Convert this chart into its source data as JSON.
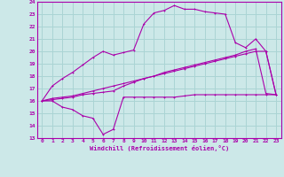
{
  "xlabel": "Windchill (Refroidissement éolien,°C)",
  "background_color": "#cce8e8",
  "grid_color": "#aad4d4",
  "line_color": "#aa00aa",
  "xlim": [
    -0.5,
    23.5
  ],
  "ylim": [
    13,
    24
  ],
  "xticks": [
    0,
    1,
    2,
    3,
    4,
    5,
    6,
    7,
    8,
    9,
    10,
    11,
    12,
    13,
    14,
    15,
    16,
    17,
    18,
    19,
    20,
    21,
    22,
    23
  ],
  "yticks": [
    13,
    14,
    15,
    16,
    17,
    18,
    19,
    20,
    21,
    22,
    23,
    24
  ],
  "series1_x": [
    0,
    1,
    2,
    3,
    4,
    5,
    6,
    7,
    8,
    9,
    10,
    11,
    12,
    13,
    14,
    15,
    16,
    17,
    18,
    19,
    20,
    21,
    22,
    23
  ],
  "series1_y": [
    16.0,
    16.0,
    15.5,
    15.3,
    14.8,
    14.6,
    13.3,
    13.7,
    16.3,
    16.3,
    16.3,
    16.3,
    16.3,
    16.3,
    16.4,
    16.5,
    16.5,
    16.5,
    16.5,
    16.5,
    16.5,
    16.5,
    16.5,
    16.5
  ],
  "series2_x": [
    0,
    1,
    2,
    3,
    4,
    5,
    6,
    7,
    8,
    9,
    10,
    11,
    12,
    13,
    14,
    15,
    16,
    17,
    18,
    19,
    20,
    21,
    22,
    23
  ],
  "series2_y": [
    16.0,
    16.2,
    16.3,
    16.4,
    16.6,
    16.8,
    17.0,
    17.2,
    17.4,
    17.6,
    17.8,
    18.0,
    18.2,
    18.4,
    18.6,
    18.8,
    19.0,
    19.2,
    19.4,
    19.6,
    19.8,
    20.0,
    20.0,
    16.5
  ],
  "series3_x": [
    0,
    1,
    2,
    3,
    4,
    5,
    6,
    7,
    8,
    9,
    10,
    11,
    12,
    13,
    14,
    15,
    16,
    17,
    18,
    19,
    20,
    21,
    22,
    23
  ],
  "series3_y": [
    16.0,
    17.2,
    17.8,
    18.3,
    18.9,
    19.5,
    20.0,
    19.7,
    19.9,
    20.1,
    22.2,
    23.1,
    23.3,
    23.7,
    23.4,
    23.4,
    23.2,
    23.1,
    23.0,
    20.7,
    20.3,
    21.0,
    20.0,
    16.5
  ],
  "series4_x": [
    0,
    1,
    2,
    3,
    4,
    5,
    6,
    7,
    8,
    9,
    10,
    11,
    12,
    13,
    14,
    15,
    16,
    17,
    18,
    19,
    20,
    21,
    22,
    23
  ],
  "series4_y": [
    16.0,
    16.1,
    16.2,
    16.3,
    16.5,
    16.6,
    16.7,
    16.8,
    17.2,
    17.5,
    17.8,
    18.0,
    18.3,
    18.5,
    18.7,
    18.9,
    19.1,
    19.3,
    19.5,
    19.7,
    20.0,
    20.2,
    16.6,
    16.5
  ]
}
